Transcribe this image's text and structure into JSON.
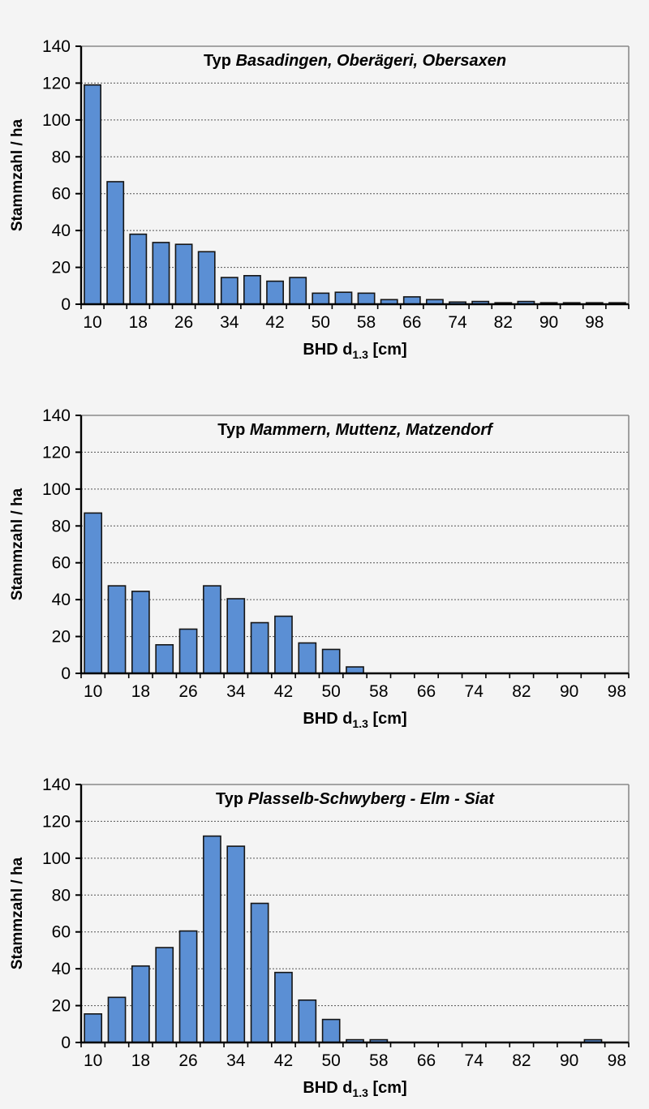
{
  "page": {
    "background": "#f4f4f4"
  },
  "colors": {
    "bar_fill": "#5b8fd4",
    "bar_stroke": "#151515",
    "grid": "#555555",
    "axis": "#000000",
    "plot_border": "#8a8a8a",
    "text": "#000000"
  },
  "shared_axis": {
    "ylabel": "Stammzahl / ha",
    "xlabel_prefix": "BHD d",
    "xlabel_subscript": "1.3",
    "xlabel_suffix": "[cm]",
    "y_ticks": [
      0,
      20,
      40,
      60,
      80,
      100,
      120,
      140
    ],
    "x_labeled_ticks": [
      10,
      18,
      26,
      34,
      42,
      50,
      58,
      66,
      74,
      82,
      90,
      98
    ]
  },
  "chart_data": [
    {
      "type": "bar",
      "title": "Typ Basadingen, Oberägeri, Obersaxen",
      "title_plain": "Typ",
      "title_italic": "Basadingen, Oberägeri, Obersaxen",
      "xlabel": "BHD d1.3 [cm]",
      "ylabel": "Stammzahl / ha",
      "ylim": [
        0,
        140
      ],
      "grid": true,
      "categories": [
        10,
        14,
        18,
        22,
        26,
        30,
        34,
        38,
        42,
        46,
        50,
        54,
        58,
        62,
        66,
        70,
        74,
        78,
        82,
        86,
        90,
        94,
        98,
        102
      ],
      "values": [
        119,
        66.5,
        38,
        33.5,
        32.5,
        28.5,
        14.5,
        15.5,
        12.5,
        14.5,
        6,
        6.5,
        6,
        2.5,
        4,
        2.5,
        1.2,
        1.5,
        0.8,
        1.5,
        0.8,
        0.8,
        0.8,
        0.8
      ]
    },
    {
      "type": "bar",
      "title": "Typ Mammern, Muttenz, Matzendorf",
      "title_plain": "Typ",
      "title_italic": "Mammern, Muttenz, Matzendorf",
      "xlabel": "BHD d1.3 [cm]",
      "ylabel": "Stammzahl / ha",
      "ylim": [
        0,
        140
      ],
      "grid": true,
      "categories": [
        10,
        14,
        18,
        22,
        26,
        30,
        34,
        38,
        42,
        46,
        50,
        54,
        58,
        62,
        66,
        70,
        74,
        78,
        82,
        86,
        90,
        94,
        98
      ],
      "values": [
        87,
        47.5,
        44.5,
        15.5,
        24,
        47.5,
        40.5,
        27.5,
        31,
        16.5,
        13,
        3.5,
        0,
        0,
        0,
        0,
        0,
        0,
        0,
        0,
        0,
        0,
        0
      ]
    },
    {
      "type": "bar",
      "title": "Typ Plasselb-Schwyberg - Elm - Siat",
      "title_plain": "Typ",
      "title_italic": "Plasselb-Schwyberg - Elm - Siat",
      "xlabel": "BHD d1.3 [cm]",
      "ylabel": "Stammzahl / ha",
      "ylim": [
        0,
        140
      ],
      "grid": true,
      "categories": [
        10,
        14,
        18,
        22,
        26,
        30,
        34,
        38,
        42,
        46,
        50,
        54,
        58,
        62,
        66,
        70,
        74,
        78,
        82,
        86,
        90,
        94,
        98
      ],
      "values": [
        15.5,
        24.5,
        41.5,
        51.5,
        60.5,
        112,
        106.5,
        75.5,
        38,
        23,
        12.5,
        1.5,
        1.5,
        0,
        0,
        0,
        0,
        0,
        0,
        0,
        0,
        1.5,
        0
      ]
    }
  ]
}
